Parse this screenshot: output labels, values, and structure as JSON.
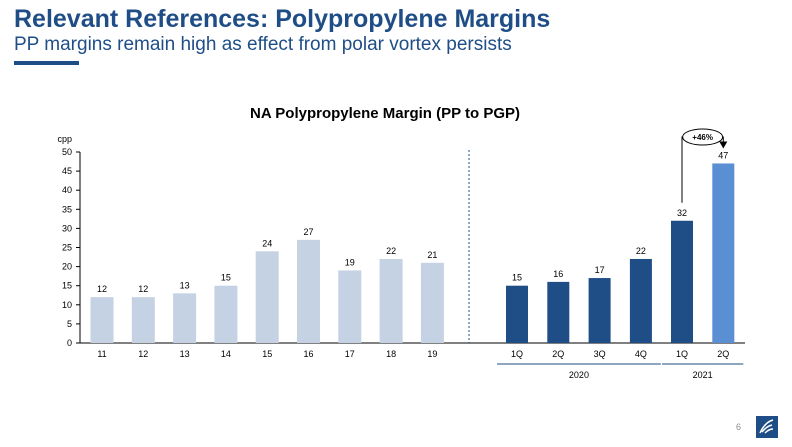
{
  "header": {
    "title": "Relevant References: Polypropylene Margins",
    "subtitle": "PP margins remain high as effect from polar vortex persists"
  },
  "footer": {
    "page_number": "6",
    "logo_icon": "company-logo-icon"
  },
  "chart_data": {
    "type": "bar",
    "title": "NA Polypropylene Margin (PP to PGP)",
    "ylabel": "cpp",
    "xlabel": "",
    "ylim": [
      0,
      50
    ],
    "yticks": [
      0,
      5,
      10,
      15,
      20,
      25,
      30,
      35,
      40,
      45,
      50
    ],
    "groups": [
      {
        "name": "",
        "color": "#c5d2e4",
        "categories": [
          "11",
          "12",
          "13",
          "14",
          "15",
          "16",
          "17",
          "18",
          "19"
        ],
        "values": [
          12,
          12,
          13,
          15,
          24,
          27,
          19,
          22,
          21
        ],
        "labels": [
          "12",
          "12",
          "13",
          "15",
          "24",
          "27",
          "19",
          "22",
          "21"
        ]
      },
      {
        "name": "2020",
        "color": "#1f4e87",
        "categories": [
          "1Q",
          "2Q",
          "3Q",
          "4Q"
        ],
        "values": [
          15,
          16,
          17,
          22
        ],
        "labels": [
          "15",
          "16",
          "17",
          "22"
        ]
      },
      {
        "name": "2021",
        "color": "#1f4e87",
        "categories": [
          "1Q",
          "2Q"
        ],
        "values": [
          32,
          47
        ],
        "labels": [
          "32",
          "47"
        ],
        "highlight_color": "#5b8fd4"
      }
    ],
    "annotation": {
      "text": "+46%",
      "from": "1Q 2021",
      "to": "2Q 2021"
    },
    "separator": "dotted-vertical-line",
    "grid": false,
    "legend": "none"
  }
}
